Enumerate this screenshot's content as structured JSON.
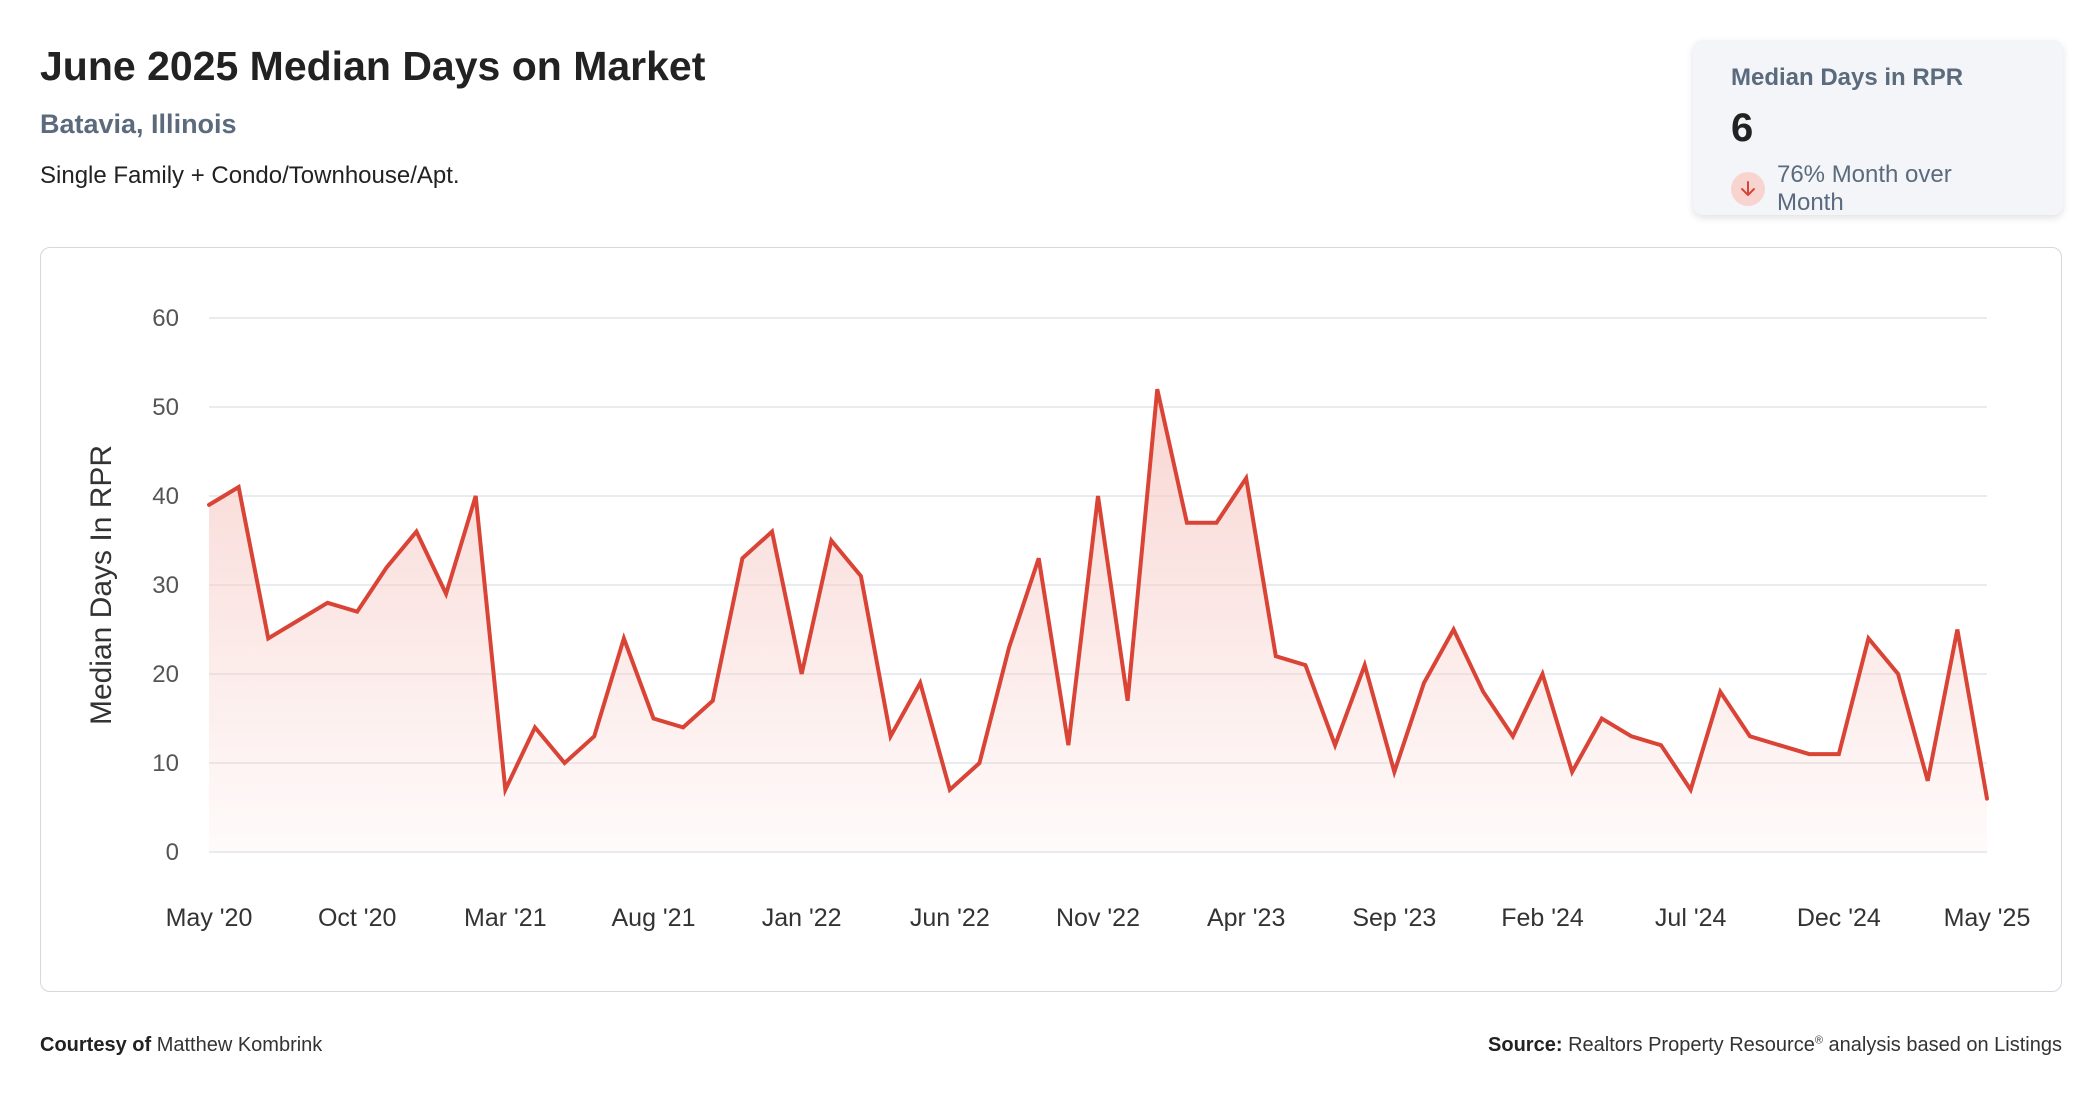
{
  "header": {
    "title": "June 2025 Median Days on Market",
    "subtitle": "Batavia, Illinois",
    "description": "Single Family + Condo/Townhouse/Apt."
  },
  "kpi": {
    "label": "Median Days in RPR",
    "value": "6",
    "change_icon": "arrow-down-icon",
    "change_text": "76% Month over Month"
  },
  "footer": {
    "courtesy_label": "Courtesy of",
    "courtesy_name": "Matthew Kombrink",
    "source_label": "Source:",
    "source_text_a": "Realtors Property Resource",
    "source_sup": "®",
    "source_text_b": " analysis based on Listings"
  },
  "colors": {
    "line": "#d94436",
    "fill": "#f6c9c4",
    "grid": "#e2e6ea",
    "axis_text": "#555555"
  },
  "chart_data": {
    "type": "area",
    "xlabel": "",
    "ylabel": "Median Days In RPR",
    "ylim": [
      0,
      60
    ],
    "yticks": [
      0,
      10,
      20,
      30,
      40,
      50,
      60
    ],
    "xtick_labels": [
      "May '20",
      "Oct '20",
      "Mar '21",
      "Aug '21",
      "Jan '22",
      "Jun '22",
      "Nov '22",
      "Apr '23",
      "Sep '23",
      "Feb '24",
      "Jul '24",
      "Dec '24",
      "May '25"
    ],
    "grid": true,
    "x": [
      "2020-05",
      "2020-06",
      "2020-07",
      "2020-08",
      "2020-09",
      "2020-10",
      "2020-11",
      "2020-12",
      "2021-01",
      "2021-02",
      "2021-03",
      "2021-04",
      "2021-05",
      "2021-06",
      "2021-07",
      "2021-08",
      "2021-09",
      "2021-10",
      "2021-11",
      "2021-12",
      "2022-01",
      "2022-02",
      "2022-03",
      "2022-04",
      "2022-05",
      "2022-06",
      "2022-07",
      "2022-08",
      "2022-09",
      "2022-10",
      "2022-11",
      "2022-12",
      "2023-01",
      "2023-02",
      "2023-03",
      "2023-04",
      "2023-05",
      "2023-06",
      "2023-07",
      "2023-08",
      "2023-09",
      "2023-10",
      "2023-11",
      "2023-12",
      "2024-01",
      "2024-02",
      "2024-03",
      "2024-04",
      "2024-05",
      "2024-06",
      "2024-07",
      "2024-08",
      "2024-09",
      "2024-10",
      "2024-11",
      "2024-12",
      "2025-01",
      "2025-02",
      "2025-03",
      "2025-04",
      "2025-05"
    ],
    "series": [
      {
        "values": [
          39,
          41,
          24,
          26,
          28,
          27,
          32,
          36,
          29,
          40,
          7,
          14,
          10,
          13,
          24,
          15,
          14,
          17,
          33,
          36,
          20,
          35,
          31,
          13,
          19,
          7,
          10,
          23,
          33,
          12,
          40,
          17,
          52,
          37,
          37,
          42,
          22,
          21,
          12,
          21,
          9,
          19,
          25,
          18,
          13,
          20,
          9,
          15,
          13,
          12,
          7,
          18,
          13,
          12,
          11,
          11,
          24,
          20,
          8,
          25,
          6
        ]
      }
    ]
  }
}
